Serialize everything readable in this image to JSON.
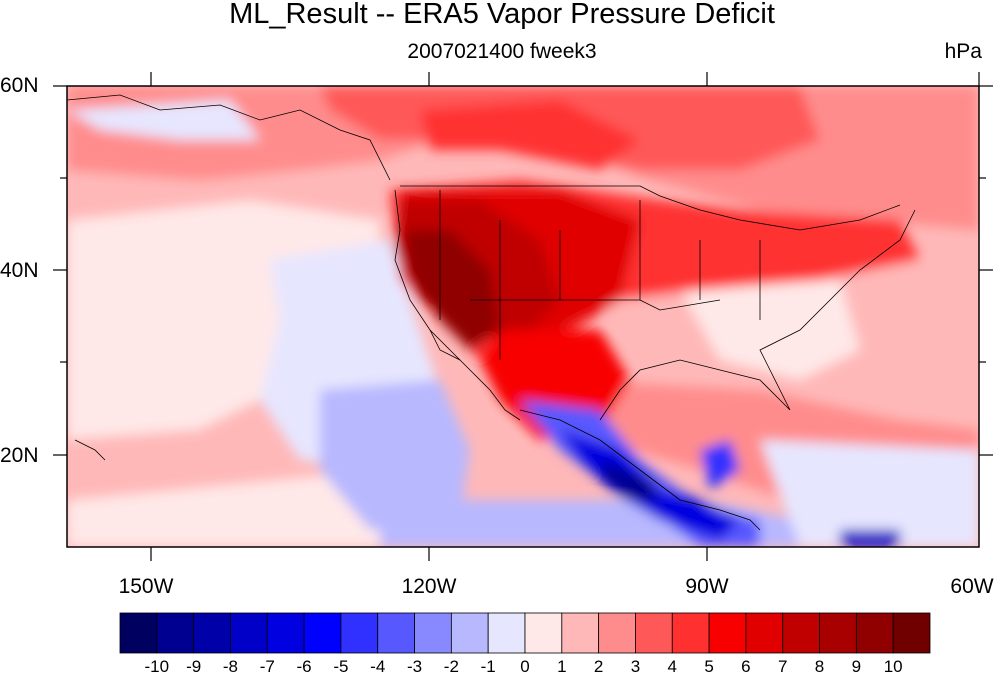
{
  "header": {
    "title": "ML_Result -- ERA5 Vapor Pressure Deficit",
    "subtitle": "2007021400 fweek3",
    "units": "hPa"
  },
  "axes": {
    "lat_labels": [
      "60N",
      "40N",
      "20N"
    ],
    "lon_labels": [
      "150W",
      "120W",
      "90W",
      "60W"
    ],
    "lon_range": [
      -160,
      -62
    ],
    "lat_range": [
      10,
      60
    ]
  },
  "colorbar": {
    "labels": [
      "-10",
      "-9",
      "-8",
      "-7",
      "-6",
      "-5",
      "-4",
      "-3",
      "-2",
      "-1",
      "0",
      "1",
      "2",
      "3",
      "4",
      "5",
      "6",
      "7",
      "8",
      "9",
      "10"
    ],
    "colors": [
      "#000060",
      "#000090",
      "#0000a8",
      "#0000c8",
      "#0000e0",
      "#0000ff",
      "#3030ff",
      "#5858ff",
      "#8888ff",
      "#b8b8ff",
      "#e6e6ff",
      "#ffe8e8",
      "#ffb8b8",
      "#ff8c8c",
      "#ff5858",
      "#ff3030",
      "#f80000",
      "#e00000",
      "#c00000",
      "#a80000",
      "#900000",
      "#700000"
    ]
  }
}
